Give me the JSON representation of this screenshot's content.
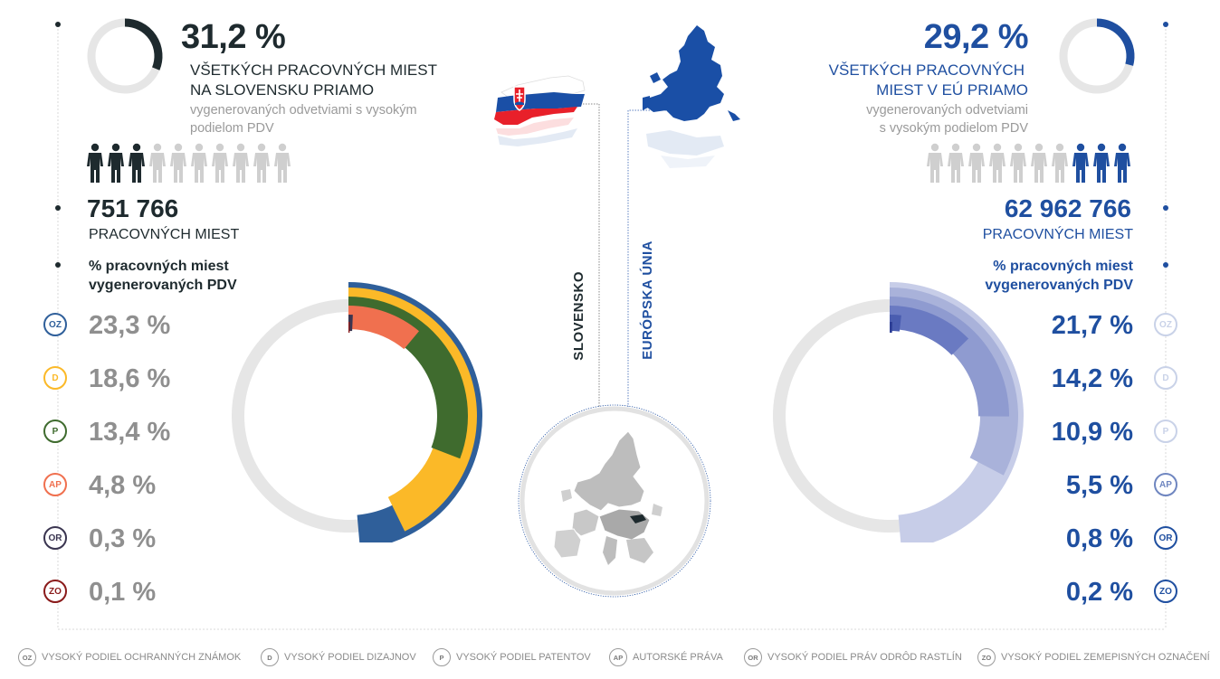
{
  "colors": {
    "sk_dark": "#1e2a2e",
    "eu_blue": "#1f4fa0",
    "grey_ring": "#e6e6e6",
    "oz": "#2f5f9a",
    "d": "#fbb928",
    "p": "#3f6b2e",
    "ap": "#f0704f",
    "or": "#3a3550",
    "zo": "#8a1a1a"
  },
  "left": {
    "share_pct": "31,2 %",
    "share_line1": "VŠETKÝCH PRACOVNÝCH MIEST",
    "share_line2": "NA SLOVENSKU PRIAMO",
    "share_sub1": "vygenerovaných odvetviami s vysokým",
    "share_sub2": "podielom PDV",
    "jobs_number": "751 766",
    "jobs_unit": "PRACOVNÝCH MIEST",
    "pct_heading1": "% pracovných miest",
    "pct_heading2": "vygenerovaných PDV",
    "country_label": "SLOVENSKO"
  },
  "right": {
    "share_pct": "29,2 %",
    "share_line1": "VŠETKÝCH PRACOVNÝCH",
    "share_line2": "MIEST V EÚ PRIAMO",
    "share_sub1": "vygenerovaných odvetviami",
    "share_sub2": "s vysokým podielom PDV",
    "jobs_number": "62 962 766",
    "jobs_unit": "PRACOVNÝCH MIEST",
    "pct_heading1": "% pracovných miest",
    "pct_heading2": "vygenerovaných PDV",
    "region_label": "EURÓPSKA ÚNIA"
  },
  "chart_data": [
    {
      "type": "radial-bar",
      "region": "Slovensko",
      "total_share": 31.2,
      "categories": [
        "OZ",
        "D",
        "P",
        "AP",
        "OR",
        "ZO"
      ],
      "values": [
        23.3,
        18.6,
        13.4,
        4.8,
        0.3,
        0.1
      ],
      "labels": [
        "23,3 %",
        "18,6 %",
        "13,4 %",
        "4,8 %",
        "0,3 %",
        "0,1 %"
      ]
    },
    {
      "type": "radial-bar",
      "region": "Európska únia",
      "total_share": 29.2,
      "categories": [
        "OZ",
        "D",
        "P",
        "AP",
        "OR",
        "ZO"
      ],
      "values": [
        21.7,
        14.2,
        10.9,
        5.5,
        0.8,
        0.2
      ],
      "labels": [
        "21,7 %",
        "14,2 %",
        "10,9 %",
        "5,5 %",
        "0,8 %",
        "0,2 %"
      ]
    }
  ],
  "legend": [
    {
      "code": "OZ",
      "text": "VYSOKÝ PODIEL OCHRANNÝCH ZNÁMOK"
    },
    {
      "code": "D",
      "text": "VYSOKÝ PODIEL DIZAJNOV"
    },
    {
      "code": "P",
      "text": "VYSOKÝ PODIEL PATENTOV"
    },
    {
      "code": "AP",
      "text": "AUTORSKÉ PRÁVA"
    },
    {
      "code": "OR",
      "text": "VYSOKÝ PODIEL PRÁV ODRÔD RASTLÍN"
    },
    {
      "code": "ZO",
      "text": "VYSOKÝ PODIEL ZEMEPISNÝCH OZNAČENÍ"
    }
  ],
  "people_icons": {
    "left_highlighted": 3,
    "right_highlighted": 3,
    "total": 10
  }
}
